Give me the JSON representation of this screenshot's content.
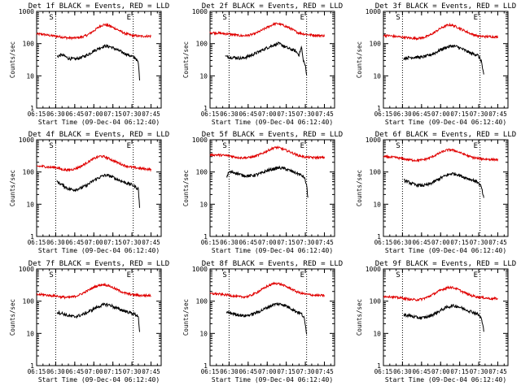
{
  "chart_data": {
    "type": "line",
    "ylabel": "Counts/sec",
    "xlabel": "Start Time (09-Dec-04 06:12:40)",
    "x_ticks": [
      "06:15",
      "06:30",
      "06:45",
      "07:00",
      "07:15",
      "07:30",
      "07:45"
    ],
    "y_ticks": [
      "1",
      "10",
      "100",
      "1000"
    ],
    "y_scale": "log",
    "ylim": [
      1,
      1000
    ],
    "xlim_minutes_of_day": [
      375,
      473
    ],
    "marker_lines_minutes": [
      390,
      451
    ],
    "marker_labels": [
      "S",
      "E"
    ],
    "colors": {
      "events": "#000000",
      "lld": "#e00000"
    },
    "panels": [
      {
        "title": "Det 1f BLACK = Events, RED = LLD",
        "lld": [
          [
            375,
            200
          ],
          [
            380,
            195
          ],
          [
            385,
            180
          ],
          [
            390,
            170
          ],
          [
            395,
            160
          ],
          [
            400,
            150
          ],
          [
            405,
            150
          ],
          [
            410,
            158
          ],
          [
            415,
            185
          ],
          [
            420,
            250
          ],
          [
            425,
            350
          ],
          [
            428,
            390
          ],
          [
            432,
            360
          ],
          [
            438,
            280
          ],
          [
            444,
            210
          ],
          [
            450,
            180
          ],
          [
            456,
            170
          ],
          [
            460,
            170
          ],
          [
            465,
            170
          ]
        ],
        "events": [
          [
            391,
            40
          ],
          [
            395,
            45
          ],
          [
            400,
            35
          ],
          [
            405,
            33
          ],
          [
            410,
            37
          ],
          [
            415,
            45
          ],
          [
            420,
            60
          ],
          [
            425,
            75
          ],
          [
            429,
            85
          ],
          [
            433,
            80
          ],
          [
            438,
            65
          ],
          [
            444,
            50
          ],
          [
            450,
            40
          ],
          [
            453,
            35
          ],
          [
            455,
            25
          ],
          [
            456,
            8
          ]
        ]
      },
      {
        "title": "Det 2f BLACK = Events, RED = LLD",
        "lld": [
          [
            375,
            220
          ],
          [
            380,
            215
          ],
          [
            385,
            205
          ],
          [
            390,
            200
          ],
          [
            395,
            185
          ],
          [
            400,
            175
          ],
          [
            405,
            180
          ],
          [
            410,
            200
          ],
          [
            415,
            250
          ],
          [
            420,
            320
          ],
          [
            425,
            400
          ],
          [
            428,
            420
          ],
          [
            432,
            380
          ],
          [
            438,
            300
          ],
          [
            444,
            220
          ],
          [
            450,
            195
          ],
          [
            455,
            185
          ],
          [
            460,
            180
          ],
          [
            465,
            175
          ]
        ],
        "events": [
          [
            387,
            40
          ],
          [
            390,
            38
          ],
          [
            395,
            37
          ],
          [
            400,
            35
          ],
          [
            405,
            40
          ],
          [
            410,
            48
          ],
          [
            415,
            60
          ],
          [
            420,
            75
          ],
          [
            425,
            90
          ],
          [
            429,
            100
          ],
          [
            432,
            88
          ],
          [
            437,
            70
          ],
          [
            442,
            60
          ],
          [
            445,
            45
          ],
          [
            447,
            80
          ],
          [
            448,
            35
          ],
          [
            450,
            20
          ],
          [
            451,
            10
          ]
        ]
      },
      {
        "title": "Det 3f BLACK = Events, RED = LLD",
        "lld": [
          [
            375,
            180
          ],
          [
            380,
            175
          ],
          [
            385,
            165
          ],
          [
            390,
            160
          ],
          [
            395,
            150
          ],
          [
            400,
            145
          ],
          [
            405,
            150
          ],
          [
            410,
            170
          ],
          [
            415,
            220
          ],
          [
            420,
            300
          ],
          [
            425,
            370
          ],
          [
            428,
            380
          ],
          [
            432,
            340
          ],
          [
            438,
            260
          ],
          [
            444,
            200
          ],
          [
            450,
            170
          ],
          [
            456,
            165
          ],
          [
            460,
            165
          ],
          [
            465,
            160
          ]
        ],
        "events": [
          [
            391,
            35
          ],
          [
            395,
            37
          ],
          [
            400,
            38
          ],
          [
            405,
            38
          ],
          [
            410,
            42
          ],
          [
            415,
            50
          ],
          [
            420,
            65
          ],
          [
            425,
            78
          ],
          [
            429,
            85
          ],
          [
            433,
            80
          ],
          [
            438,
            65
          ],
          [
            444,
            50
          ],
          [
            449,
            45
          ],
          [
            452,
            30
          ],
          [
            454,
            10
          ]
        ]
      },
      {
        "title": "Det 4f BLACK = Events, RED = LLD",
        "lld": [
          [
            375,
            150
          ],
          [
            380,
            150
          ],
          [
            385,
            140
          ],
          [
            390,
            140
          ],
          [
            395,
            120
          ],
          [
            400,
            115
          ],
          [
            405,
            125
          ],
          [
            410,
            150
          ],
          [
            415,
            200
          ],
          [
            420,
            260
          ],
          [
            425,
            310
          ],
          [
            428,
            300
          ],
          [
            432,
            260
          ],
          [
            438,
            200
          ],
          [
            444,
            160
          ],
          [
            450,
            140
          ],
          [
            456,
            130
          ],
          [
            460,
            125
          ],
          [
            465,
            120
          ]
        ],
        "events": [
          [
            391,
            50
          ],
          [
            395,
            40
          ],
          [
            400,
            30
          ],
          [
            405,
            28
          ],
          [
            410,
            32
          ],
          [
            415,
            40
          ],
          [
            420,
            55
          ],
          [
            425,
            70
          ],
          [
            429,
            80
          ],
          [
            433,
            75
          ],
          [
            438,
            60
          ],
          [
            444,
            48
          ],
          [
            450,
            40
          ],
          [
            455,
            30
          ],
          [
            456,
            8
          ]
        ]
      },
      {
        "title": "Det 5f BLACK = Events, RED = LLD",
        "lld": [
          [
            375,
            340
          ],
          [
            380,
            340
          ],
          [
            385,
            330
          ],
          [
            390,
            320
          ],
          [
            395,
            290
          ],
          [
            400,
            275
          ],
          [
            405,
            280
          ],
          [
            410,
            300
          ],
          [
            415,
            360
          ],
          [
            420,
            450
          ],
          [
            425,
            560
          ],
          [
            428,
            580
          ],
          [
            432,
            520
          ],
          [
            438,
            420
          ],
          [
            444,
            330
          ],
          [
            450,
            290
          ],
          [
            456,
            280
          ],
          [
            460,
            280
          ],
          [
            465,
            280
          ]
        ],
        "events": [
          [
            388,
            70
          ],
          [
            390,
            100
          ],
          [
            395,
            95
          ],
          [
            400,
            80
          ],
          [
            405,
            75
          ],
          [
            410,
            80
          ],
          [
            415,
            90
          ],
          [
            420,
            110
          ],
          [
            425,
            125
          ],
          [
            429,
            135
          ],
          [
            433,
            130
          ],
          [
            438,
            110
          ],
          [
            444,
            90
          ],
          [
            449,
            70
          ],
          [
            451,
            40
          ],
          [
            452,
            15
          ]
        ]
      },
      {
        "title": "Det 6f BLACK = Events, RED = LLD",
        "lld": [
          [
            375,
            300
          ],
          [
            380,
            290
          ],
          [
            385,
            280
          ],
          [
            390,
            260
          ],
          [
            395,
            240
          ],
          [
            400,
            230
          ],
          [
            405,
            235
          ],
          [
            410,
            260
          ],
          [
            415,
            320
          ],
          [
            420,
            400
          ],
          [
            425,
            480
          ],
          [
            428,
            490
          ],
          [
            432,
            450
          ],
          [
            438,
            360
          ],
          [
            444,
            290
          ],
          [
            450,
            260
          ],
          [
            456,
            250
          ],
          [
            460,
            245
          ],
          [
            465,
            240
          ]
        ],
        "events": [
          [
            391,
            55
          ],
          [
            395,
            48
          ],
          [
            400,
            40
          ],
          [
            405,
            38
          ],
          [
            410,
            40
          ],
          [
            415,
            50
          ],
          [
            420,
            65
          ],
          [
            425,
            80
          ],
          [
            429,
            90
          ],
          [
            433,
            85
          ],
          [
            438,
            70
          ],
          [
            444,
            58
          ],
          [
            449,
            50
          ],
          [
            452,
            35
          ],
          [
            454,
            15
          ]
        ]
      },
      {
        "title": "Det 7f BLACK = Events, RED = LLD",
        "lld": [
          [
            375,
            160
          ],
          [
            380,
            160
          ],
          [
            385,
            150
          ],
          [
            390,
            145
          ],
          [
            395,
            135
          ],
          [
            400,
            130
          ],
          [
            405,
            140
          ],
          [
            410,
            165
          ],
          [
            415,
            210
          ],
          [
            420,
            270
          ],
          [
            425,
            320
          ],
          [
            428,
            330
          ],
          [
            432,
            300
          ],
          [
            438,
            230
          ],
          [
            444,
            180
          ],
          [
            450,
            160
          ],
          [
            456,
            150
          ],
          [
            460,
            150
          ],
          [
            465,
            150
          ]
        ],
        "events": [
          [
            391,
            45
          ],
          [
            395,
            42
          ],
          [
            400,
            35
          ],
          [
            405,
            33
          ],
          [
            410,
            37
          ],
          [
            415,
            45
          ],
          [
            420,
            58
          ],
          [
            425,
            72
          ],
          [
            429,
            80
          ],
          [
            433,
            75
          ],
          [
            438,
            60
          ],
          [
            444,
            50
          ],
          [
            450,
            42
          ],
          [
            455,
            35
          ],
          [
            456,
            10
          ]
        ]
      },
      {
        "title": "Det 8f BLACK = Events, RED = LLD",
        "lld": [
          [
            375,
            170
          ],
          [
            380,
            170
          ],
          [
            385,
            160
          ],
          [
            390,
            155
          ],
          [
            395,
            140
          ],
          [
            400,
            135
          ],
          [
            405,
            140
          ],
          [
            410,
            170
          ],
          [
            415,
            220
          ],
          [
            420,
            290
          ],
          [
            425,
            350
          ],
          [
            428,
            360
          ],
          [
            432,
            320
          ],
          [
            438,
            250
          ],
          [
            444,
            190
          ],
          [
            450,
            165
          ],
          [
            456,
            155
          ],
          [
            460,
            150
          ],
          [
            465,
            150
          ]
        ],
        "events": [
          [
            388,
            45
          ],
          [
            392,
            42
          ],
          [
            397,
            38
          ],
          [
            402,
            35
          ],
          [
            407,
            38
          ],
          [
            412,
            45
          ],
          [
            417,
            55
          ],
          [
            422,
            70
          ],
          [
            426,
            80
          ],
          [
            429,
            82
          ],
          [
            433,
            78
          ],
          [
            437,
            65
          ],
          [
            442,
            50
          ],
          [
            447,
            40
          ],
          [
            449,
            30
          ],
          [
            451,
            10
          ]
        ]
      },
      {
        "title": "Det 9f BLACK = Events, RED = LLD",
        "lld": [
          [
            375,
            140
          ],
          [
            380,
            140
          ],
          [
            385,
            130
          ],
          [
            390,
            125
          ],
          [
            395,
            115
          ],
          [
            400,
            110
          ],
          [
            405,
            115
          ],
          [
            410,
            135
          ],
          [
            415,
            170
          ],
          [
            420,
            220
          ],
          [
            425,
            260
          ],
          [
            428,
            270
          ],
          [
            432,
            250
          ],
          [
            438,
            190
          ],
          [
            444,
            150
          ],
          [
            450,
            135
          ],
          [
            456,
            125
          ],
          [
            460,
            120
          ],
          [
            465,
            120
          ]
        ],
        "events": [
          [
            391,
            38
          ],
          [
            395,
            36
          ],
          [
            400,
            32
          ],
          [
            405,
            30
          ],
          [
            410,
            33
          ],
          [
            415,
            40
          ],
          [
            420,
            52
          ],
          [
            425,
            65
          ],
          [
            429,
            72
          ],
          [
            433,
            70
          ],
          [
            438,
            58
          ],
          [
            444,
            48
          ],
          [
            449,
            40
          ],
          [
            452,
            30
          ],
          [
            454,
            12
          ]
        ]
      }
    ]
  }
}
